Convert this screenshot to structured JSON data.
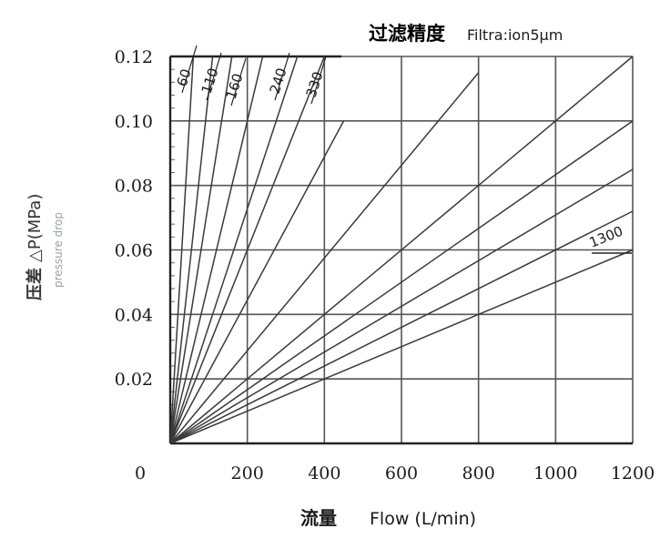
{
  "chart_data": {
    "type": "line",
    "title_cn": "过滤精度",
    "title_en": "Filtra:ion5μm",
    "xlabel_cn": "流量",
    "xlabel_en": "Flow (L/min)",
    "ylabel_cn": "压差",
    "ylabel_en": "△P(MPa)",
    "ylabel_sub": "pressure drop",
    "xlim": [
      0,
      1200
    ],
    "ylim": [
      0,
      0.12
    ],
    "x_ticks": [
      "0",
      "200",
      "400",
      "600",
      "800",
      "1000",
      "1200"
    ],
    "y_ticks": [
      "0.02",
      "0.04",
      "0.06",
      "0.08",
      "0.10",
      "0.12"
    ],
    "grid": true,
    "series": [
      {
        "name": "60",
        "x": [
          0,
          60
        ],
        "y": [
          0,
          0.12
        ]
      },
      {
        "name": "110",
        "x": [
          0,
          110
        ],
        "y": [
          0,
          0.12
        ]
      },
      {
        "name": "160",
        "x": [
          0,
          160
        ],
        "y": [
          0,
          0.12
        ]
      },
      {
        "name": "240",
        "x": [
          0,
          240
        ],
        "y": [
          0,
          0.12
        ]
      },
      {
        "name": "330",
        "x": [
          0,
          330
        ],
        "y": [
          0,
          0.12
        ]
      },
      {
        "name": "",
        "x": [
          0,
          400
        ],
        "y": [
          0,
          0.12
        ]
      },
      {
        "name": "",
        "x": [
          0,
          450
        ],
        "y": [
          0,
          0.1
        ]
      },
      {
        "name": "",
        "x": [
          0,
          800
        ],
        "y": [
          0,
          0.115
        ]
      },
      {
        "name": "",
        "x": [
          0,
          1200
        ],
        "y": [
          0,
          0.12
        ]
      },
      {
        "name": "",
        "x": [
          0,
          1200
        ],
        "y": [
          0,
          0.1
        ]
      },
      {
        "name": "",
        "x": [
          0,
          1200
        ],
        "y": [
          0,
          0.085
        ]
      },
      {
        "name": "",
        "x": [
          0,
          1200
        ],
        "y": [
          0,
          0.072
        ]
      },
      {
        "name": "1300",
        "x": [
          0,
          1200
        ],
        "y": [
          0,
          0.06
        ]
      }
    ]
  }
}
